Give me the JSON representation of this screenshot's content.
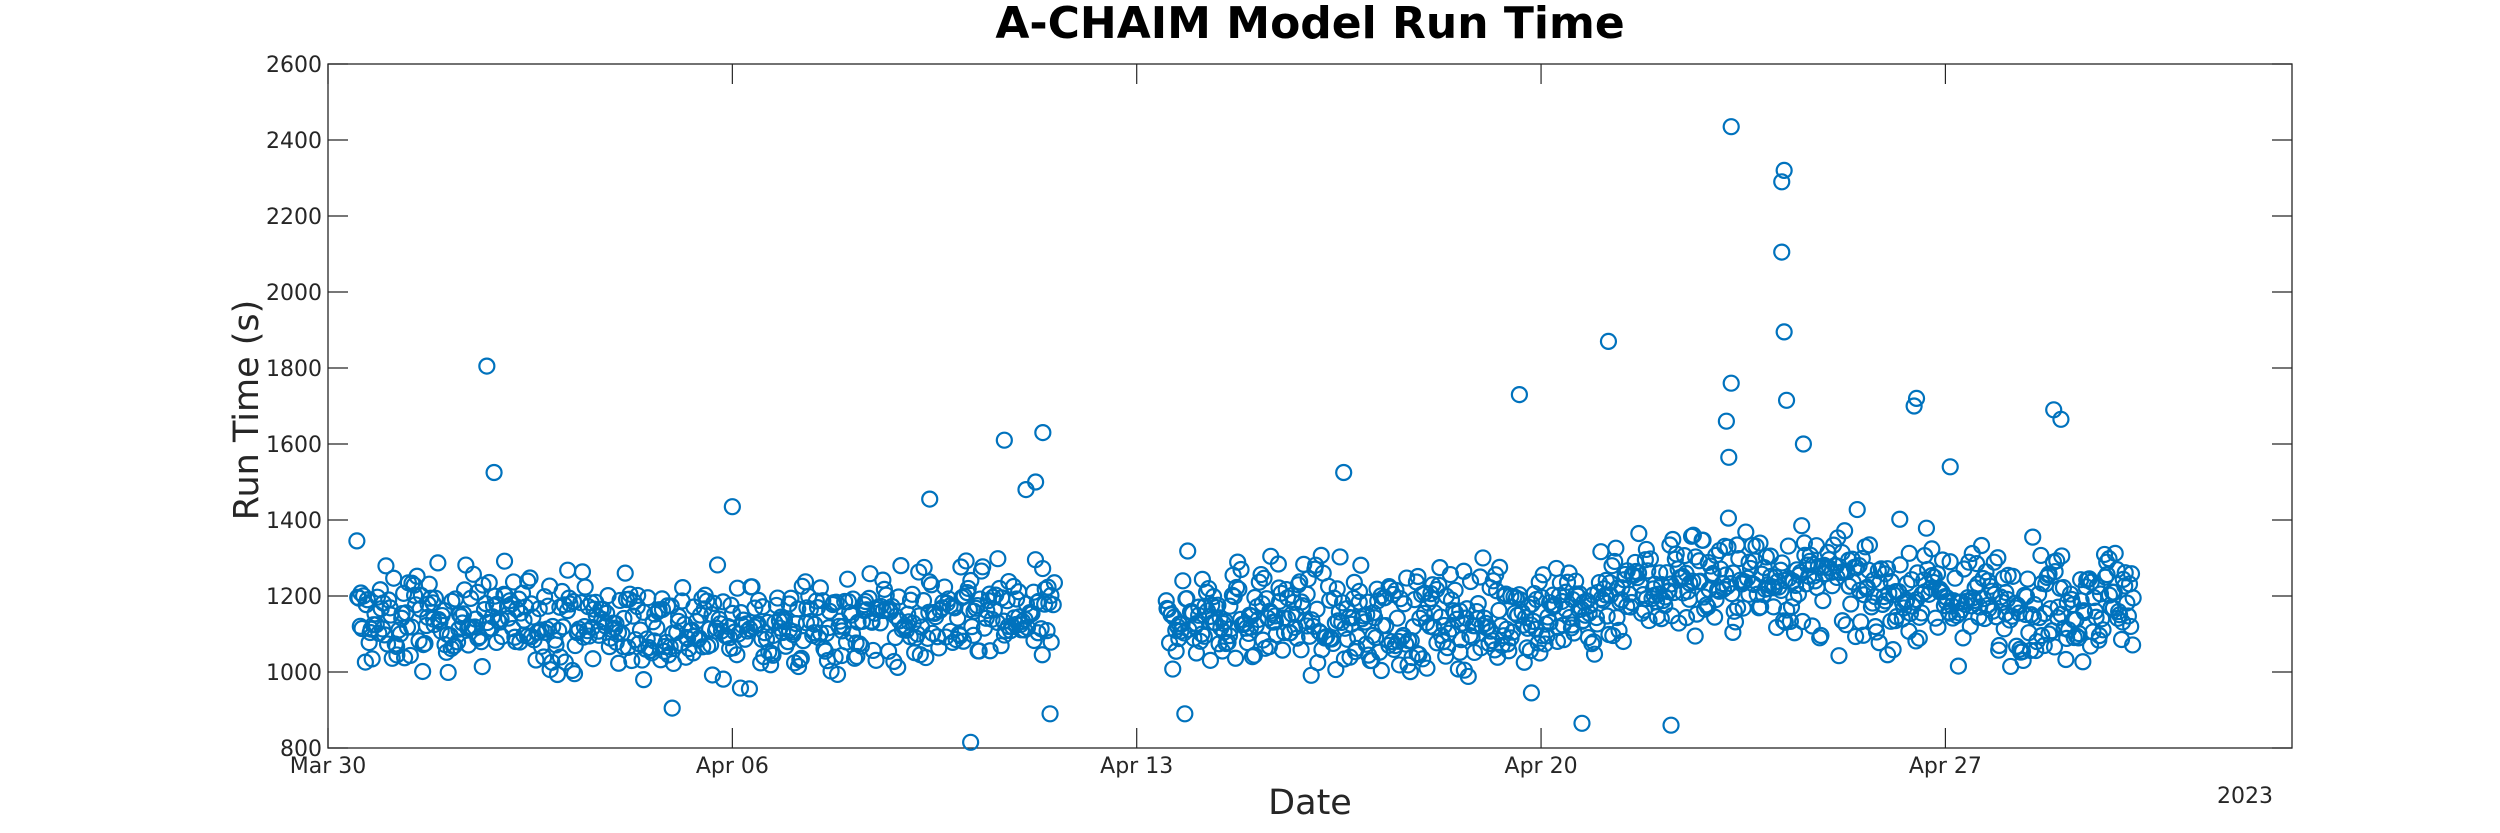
{
  "chart_data": {
    "type": "scatter",
    "title": "A-CHAIM Model Run Time",
    "xlabel": "Date",
    "ylabel": "Run Time (s)",
    "year_label": "2023",
    "xlim": [
      "2023-03-30",
      "2023-05-03"
    ],
    "ylim": [
      800,
      2600
    ],
    "x_ticks": [
      "Mar 30",
      "Apr 06",
      "Apr 13",
      "Apr 20",
      "Apr 27"
    ],
    "y_ticks": [
      "800",
      "1000",
      "1200",
      "1400",
      "1600",
      "1800",
      "2000",
      "2200",
      "2400",
      "2600"
    ],
    "marker": "open-circle",
    "color": "#0072BD",
    "grid": false,
    "data_gap": [
      "2023-04-11T14:00",
      "2023-04-13T08:00"
    ],
    "notable_points": [
      {
        "x": "2023-03-30T12:00",
        "y": 1345
      },
      {
        "x": "2023-04-01T18:00",
        "y": 1805
      },
      {
        "x": "2023-04-01T21:00",
        "y": 1525
      },
      {
        "x": "2023-04-04T23:00",
        "y": 905
      },
      {
        "x": "2023-04-06T00:00",
        "y": 1435
      },
      {
        "x": "2023-04-09T10:00",
        "y": 1455
      },
      {
        "x": "2023-04-10T03:00",
        "y": 815
      },
      {
        "x": "2023-04-10T17:00",
        "y": 1610
      },
      {
        "x": "2023-04-11T02:00",
        "y": 1480
      },
      {
        "x": "2023-04-11T06:00",
        "y": 1500
      },
      {
        "x": "2023-04-11T09:00",
        "y": 1630
      },
      {
        "x": "2023-04-11T12:00",
        "y": 890
      },
      {
        "x": "2023-04-13T20:00",
        "y": 890
      },
      {
        "x": "2023-04-16T14:00",
        "y": 1525
      },
      {
        "x": "2023-04-19T15:00",
        "y": 1730
      },
      {
        "x": "2023-04-19T20:00",
        "y": 945
      },
      {
        "x": "2023-04-20T17:00",
        "y": 865
      },
      {
        "x": "2023-04-21T04:00",
        "y": 1870
      },
      {
        "x": "2023-04-22T06:00",
        "y": 860
      },
      {
        "x": "2023-04-23T07:00",
        "y": 2435
      },
      {
        "x": "2023-04-23T07:00",
        "y": 1760
      },
      {
        "x": "2023-04-23T05:00",
        "y": 1660
      },
      {
        "x": "2023-04-23T06:00",
        "y": 1565
      },
      {
        "x": "2023-04-24T05:00",
        "y": 2320
      },
      {
        "x": "2023-04-24T04:00",
        "y": 2290
      },
      {
        "x": "2023-04-24T04:00",
        "y": 2105
      },
      {
        "x": "2023-04-24T05:00",
        "y": 1895
      },
      {
        "x": "2023-04-24T06:00",
        "y": 1715
      },
      {
        "x": "2023-04-24T13:00",
        "y": 1600
      },
      {
        "x": "2023-04-26T12:00",
        "y": 1720
      },
      {
        "x": "2023-04-26T11:00",
        "y": 1700
      },
      {
        "x": "2023-04-27T02:00",
        "y": 1540
      },
      {
        "x": "2023-04-28T21:00",
        "y": 1690
      },
      {
        "x": "2023-04-29T00:00",
        "y": 1665
      },
      {
        "x": "2023-04-28T19:00",
        "y": 1100
      },
      {
        "x": "2023-04-30T06:00",
        "y": 1195
      }
    ],
    "segments": [
      {
        "start": "2023-03-30T12:00",
        "end": "2023-04-11T14:00",
        "mean": 1130,
        "spread": 85,
        "count": 560
      },
      {
        "start": "2023-04-13T12:00",
        "end": "2023-04-21T00:00",
        "mean": 1145,
        "spread": 90,
        "count": 380
      },
      {
        "start": "2023-04-21T00:00",
        "end": "2023-04-30T06:00",
        "mean": 1215,
        "spread": 95,
        "count": 470
      }
    ]
  }
}
